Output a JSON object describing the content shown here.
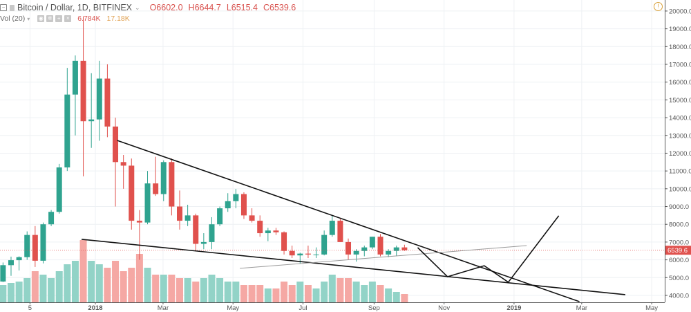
{
  "header": {
    "symbol": "Bitcoin / Dollar, 1D, BITFINEX",
    "open": "O6602.0",
    "high": "H6644.7",
    "low": "L6515.4",
    "close": "C6539.6",
    "volume_label": "Vol (20)",
    "volume_value": "6.784K",
    "volume_ma": "17.18K",
    "alert_icon": "!"
  },
  "colors": {
    "up": "#2fa38f",
    "down": "#e0514d",
    "vol_up": "#92d3c7",
    "vol_down": "#f5a8a4",
    "last_price": "#e0514d",
    "drawing": "#111111",
    "drawing_gray": "#9a9a9a"
  },
  "chart_data": {
    "type": "candlestick",
    "title": "Bitcoin / Dollar, 1D, BITFINEX",
    "last_price": 6539.6,
    "last_price_label": "6539.6",
    "y_ticks": [
      "4000.0",
      "5000.0",
      "6000.0",
      "7000.0",
      "8000.0",
      "9000.0",
      "10000.0",
      "11000.0",
      "12000.0",
      "13000.0",
      "14000.0",
      "15000.0",
      "16000.0",
      "17000.0",
      "18000.0",
      "19000.0",
      "20000.0"
    ],
    "ylim": [
      3610,
      20620
    ],
    "xlim": [
      "2017-10-10",
      "2019-05-06"
    ],
    "grid": true,
    "x_ticks": [
      {
        "date": "2017-11-05",
        "label": "5"
      },
      {
        "date": "2018-01-01",
        "label": "2018",
        "bold": true
      },
      {
        "date": "2018-03-01",
        "label": "Mar"
      },
      {
        "date": "2018-05-01",
        "label": "May"
      },
      {
        "date": "2018-07-01",
        "label": "Jul"
      },
      {
        "date": "2018-09-01",
        "label": "Sep"
      },
      {
        "date": "2018-11-01",
        "label": "Nov"
      },
      {
        "date": "2019-01-01",
        "label": "2019",
        "bold": true
      },
      {
        "date": "2019-03-01",
        "label": "Mar"
      },
      {
        "date": "2019-05-01",
        "label": "May"
      }
    ],
    "candles_columns": [
      "week_start",
      "open",
      "high",
      "low",
      "close",
      "volume_k"
    ],
    "candles": [
      [
        "2017-10-09",
        4780,
        5850,
        4750,
        5700,
        25
      ],
      [
        "2017-10-16",
        5700,
        6180,
        5100,
        5980,
        28
      ],
      [
        "2017-10-23",
        5980,
        6200,
        5400,
        6150,
        30
      ],
      [
        "2017-10-30",
        6150,
        7600,
        6000,
        7400,
        35
      ],
      [
        "2017-11-06",
        7400,
        7900,
        5600,
        5950,
        45
      ],
      [
        "2017-11-13",
        5950,
        8100,
        5800,
        8000,
        40
      ],
      [
        "2017-11-20",
        8000,
        8800,
        7900,
        8700,
        35
      ],
      [
        "2017-11-27",
        8700,
        11400,
        8600,
        11200,
        45
      ],
      [
        "2017-12-04",
        11200,
        16800,
        11000,
        15300,
        55
      ],
      [
        "2017-12-11",
        15300,
        17500,
        13000,
        17200,
        60
      ],
      [
        "2017-12-18",
        17200,
        19700,
        10700,
        13800,
        90
      ],
      [
        "2017-12-25",
        13800,
        16500,
        12300,
        13900,
        60
      ],
      [
        "2018-01-01",
        13900,
        17200,
        12700,
        16200,
        55
      ],
      [
        "2018-01-08",
        16200,
        17000,
        12900,
        13500,
        50
      ],
      [
        "2018-01-15",
        13500,
        14000,
        9000,
        11500,
        60
      ],
      [
        "2018-01-22",
        11500,
        11900,
        10000,
        11300,
        45
      ],
      [
        "2018-01-29",
        11300,
        11700,
        7700,
        8200,
        50
      ],
      [
        "2018-02-05",
        8200,
        8800,
        6000,
        8100,
        70
      ],
      [
        "2018-02-12",
        8100,
        11000,
        8000,
        10300,
        50
      ],
      [
        "2018-02-19",
        10300,
        11800,
        9600,
        9700,
        40
      ],
      [
        "2018-02-26",
        9700,
        11600,
        9300,
        11500,
        40
      ],
      [
        "2018-03-05",
        11500,
        11700,
        8500,
        9000,
        40
      ],
      [
        "2018-03-12",
        9000,
        9900,
        7700,
        8200,
        35
      ],
      [
        "2018-03-19",
        8200,
        9100,
        7900,
        8500,
        35
      ],
      [
        "2018-03-26",
        8500,
        8600,
        6500,
        6900,
        30
      ],
      [
        "2018-04-02",
        6900,
        7500,
        6600,
        7000,
        35
      ],
      [
        "2018-04-09",
        7000,
        8400,
        6600,
        8000,
        40
      ],
      [
        "2018-04-16",
        8000,
        9000,
        7900,
        8900,
        35
      ],
      [
        "2018-04-23",
        8900,
        9750,
        8700,
        9300,
        30
      ],
      [
        "2018-04-30",
        9300,
        9990,
        8900,
        9700,
        30
      ],
      [
        "2018-05-07",
        9700,
        9800,
        8300,
        8500,
        25
      ],
      [
        "2018-05-14",
        8500,
        8900,
        8100,
        8200,
        25
      ],
      [
        "2018-05-21",
        8200,
        8500,
        7300,
        7500,
        25
      ],
      [
        "2018-05-28",
        7500,
        7800,
        7050,
        7650,
        20
      ],
      [
        "2018-06-04",
        7650,
        7800,
        7400,
        7550,
        20
      ],
      [
        "2018-06-11",
        7550,
        7600,
        6300,
        6500,
        30
      ],
      [
        "2018-06-18",
        6500,
        6800,
        6100,
        6250,
        25
      ],
      [
        "2018-06-25",
        6250,
        6400,
        5780,
        6350,
        30
      ],
      [
        "2018-07-02",
        6350,
        6800,
        6100,
        6300,
        25
      ],
      [
        "2018-07-09",
        6300,
        6700,
        6100,
        6300,
        20
      ],
      [
        "2018-07-16",
        6300,
        7650,
        6250,
        7400,
        30
      ],
      [
        "2018-07-23",
        7400,
        8500,
        7300,
        8200,
        40
      ],
      [
        "2018-07-30",
        8200,
        8300,
        7000,
        7000,
        35
      ],
      [
        "2018-08-06",
        7000,
        7200,
        6000,
        6300,
        35
      ],
      [
        "2018-08-13",
        6300,
        6600,
        5900,
        6500,
        30
      ],
      [
        "2018-08-20",
        6500,
        6800,
        6200,
        6700,
        25
      ],
      [
        "2018-08-27",
        6700,
        7300,
        6600,
        7300,
        30
      ],
      [
        "2018-09-03",
        7300,
        7450,
        6200,
        6300,
        25
      ],
      [
        "2018-09-10",
        6300,
        6600,
        6150,
        6500,
        20
      ],
      [
        "2018-09-17",
        6500,
        6800,
        6200,
        6700,
        15
      ],
      [
        "2018-09-24",
        6700,
        6850,
        6500,
        6540,
        12
      ]
    ],
    "drawings": [
      {
        "name": "resistance-trendline",
        "color": "black",
        "points": [
          [
            "2018-01-20",
            12720
          ],
          [
            "2019-02-27",
            3650
          ]
        ]
      },
      {
        "name": "support-trendline",
        "color": "black",
        "points": [
          [
            "2017-12-20",
            7155
          ],
          [
            "2019-04-08",
            4040
          ]
        ]
      },
      {
        "name": "gray-trendline",
        "color": "gray",
        "points": [
          [
            "2018-05-07",
            5520
          ],
          [
            "2019-01-12",
            6800
          ]
        ]
      },
      {
        "name": "projection-path",
        "color": "black",
        "points": [
          [
            "2018-10-09",
            6690
          ],
          [
            "2018-11-04",
            5050
          ],
          [
            "2018-12-06",
            5670
          ],
          [
            "2018-12-27",
            4740
          ],
          [
            "2019-02-09",
            8480
          ]
        ]
      }
    ]
  }
}
